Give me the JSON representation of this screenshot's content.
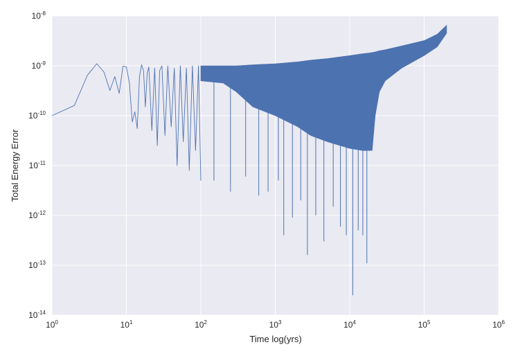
{
  "chart_data": {
    "type": "line",
    "title": "",
    "xlabel": "Time log(yrs)",
    "ylabel": "Total Energy Error",
    "xscale": "log",
    "yscale": "log",
    "xlim": [
      1,
      1000000
    ],
    "ylim": [
      1e-14,
      1e-08
    ],
    "grid": true,
    "background": "#eaeaf2",
    "grid_color": "#ffffff",
    "line_color": "#4c72b0",
    "x_ticks": [
      {
        "base": "10",
        "exp": "0"
      },
      {
        "base": "10",
        "exp": "1"
      },
      {
        "base": "10",
        "exp": "2"
      },
      {
        "base": "10",
        "exp": "3"
      },
      {
        "base": "10",
        "exp": "4"
      },
      {
        "base": "10",
        "exp": "5"
      },
      {
        "base": "10",
        "exp": "6"
      }
    ],
    "y_ticks": [
      {
        "base": "10",
        "exp": "-8"
      },
      {
        "base": "10",
        "exp": "-9"
      },
      {
        "base": "10",
        "exp": "-10"
      },
      {
        "base": "10",
        "exp": "-11"
      },
      {
        "base": "10",
        "exp": "-12"
      },
      {
        "base": "10",
        "exp": "-13"
      },
      {
        "base": "10",
        "exp": "-14"
      }
    ],
    "series": [
      {
        "x": [
          1,
          2,
          3,
          4,
          5,
          6,
          7,
          8,
          9,
          10,
          11,
          12,
          13,
          14,
          15,
          16,
          17,
          18,
          19,
          20,
          22,
          24,
          26,
          28,
          30,
          33,
          36,
          40,
          44,
          48,
          53,
          58,
          64,
          70,
          77,
          85,
          93,
          100
        ],
        "y": [
          1e-10,
          1.6e-10,
          6.5e-10,
          1.1e-09,
          7.5e-10,
          3.2e-10,
          6.1e-10,
          2.8e-10,
          9.8e-10,
          9.5e-10,
          4.5e-10,
          7.5e-11,
          1.2e-10,
          5.5e-11,
          6e-10,
          1.05e-09,
          8e-10,
          1.5e-10,
          7e-10,
          9.5e-10,
          5e-11,
          9e-10,
          2.5e-11,
          8e-10,
          1e-09,
          4e-11,
          1e-09,
          6e-11,
          9e-10,
          1e-11,
          1e-09,
          3e-11,
          9e-10,
          8e-12,
          1e-09,
          2e-11,
          1e-09,
          5e-12
        ]
      }
    ],
    "envelope": {
      "x": [
        100,
        200,
        300,
        500,
        1000,
        2000,
        3000,
        5000,
        10000,
        15000,
        18000,
        20000,
        22000,
        25000,
        30000,
        50000,
        100000,
        150000,
        200000
      ],
      "upper": [
        1e-09,
        1e-09,
        1e-09,
        1.05e-09,
        1.1e-09,
        1.2e-09,
        1.3e-09,
        1.4e-09,
        1.6e-09,
        1.75e-09,
        1.8e-09,
        1.85e-09,
        1.9e-09,
        2e-09,
        2.1e-09,
        2.5e-09,
        3.2e-09,
        4.3e-09,
        6.5e-09
      ],
      "lower": [
        5e-10,
        4.5e-10,
        3e-10,
        1.5e-10,
        1e-10,
        6e-11,
        4e-11,
        3e-11,
        2.2e-11,
        2e-11,
        2e-11,
        2e-11,
        1e-10,
        3e-10,
        5e-10,
        9e-10,
        1.6e-09,
        2.4e-09,
        4.5e-09
      ]
    },
    "spikes": [
      {
        "x": 150,
        "y": 5e-12
      },
      {
        "x": 250,
        "y": 3e-12
      },
      {
        "x": 400,
        "y": 6e-12
      },
      {
        "x": 600,
        "y": 2.5e-12
      },
      {
        "x": 800,
        "y": 3e-12
      },
      {
        "x": 1100,
        "y": 5e-12
      },
      {
        "x": 1300,
        "y": 4e-13
      },
      {
        "x": 1700,
        "y": 9e-13
      },
      {
        "x": 2200,
        "y": 2e-12
      },
      {
        "x": 2700,
        "y": 1.6e-13
      },
      {
        "x": 3500,
        "y": 1e-12
      },
      {
        "x": 4500,
        "y": 3e-13
      },
      {
        "x": 6000,
        "y": 1.5e-12
      },
      {
        "x": 7500,
        "y": 6e-13
      },
      {
        "x": 9000,
        "y": 4e-13
      },
      {
        "x": 11000,
        "y": 2.5e-14
      },
      {
        "x": 13000,
        "y": 5e-13
      },
      {
        "x": 15000,
        "y": 4e-13
      },
      {
        "x": 17000,
        "y": 1.1e-13
      }
    ]
  }
}
